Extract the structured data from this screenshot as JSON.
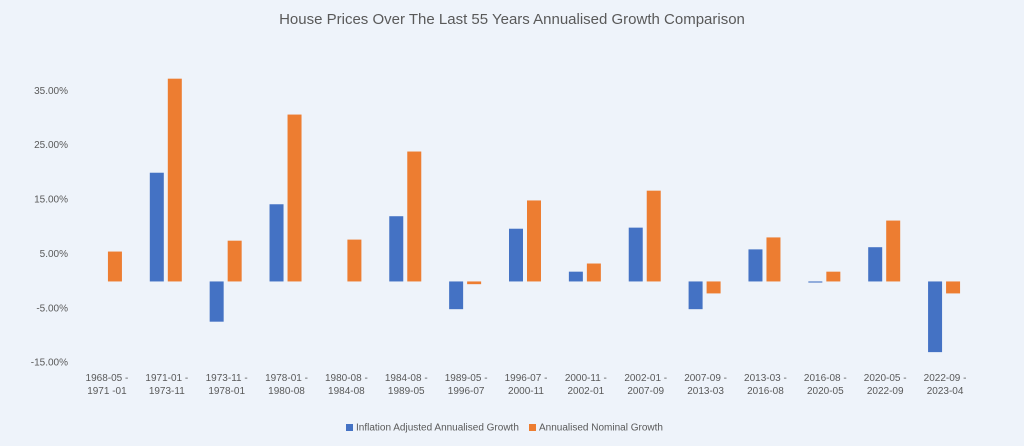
{
  "chart_data": {
    "type": "bar",
    "title": "House Prices Over The Last 55 Years Annualised Growth Comparison",
    "categories": [
      [
        "1968-05 -",
        "1971 -01"
      ],
      [
        "1971-01 -",
        "1973-11"
      ],
      [
        "1973-11 -",
        "1978-01"
      ],
      [
        "1978-01 -",
        "1980-08"
      ],
      [
        "1980-08 -",
        "1984-08"
      ],
      [
        "1984-08 -",
        "1989-05"
      ],
      [
        "1989-05 -",
        "1996-07"
      ],
      [
        "1996-07 -",
        "2000-11"
      ],
      [
        "2000-11 -",
        "2002-01"
      ],
      [
        "2002-01 -",
        "2007-09"
      ],
      [
        "2007-09 -",
        "2013-03"
      ],
      [
        "2013-03 -",
        "2016-08"
      ],
      [
        "2016-08 -",
        "2020-05"
      ],
      [
        "2020-05 -",
        "2022-09"
      ],
      [
        "2022-09 -",
        "2023-04"
      ]
    ],
    "series": [
      {
        "name": "Inflation Adjusted Annualised Growth",
        "color": "#4472c4",
        "values": [
          0,
          20.0,
          -7.4,
          14.2,
          0,
          12.0,
          -5.1,
          9.7,
          1.8,
          9.9,
          -5.1,
          5.9,
          -0.2,
          6.3,
          -13.0
        ]
      },
      {
        "name": "Annualised Nominal Growth",
        "color": "#ed7d31",
        "values": [
          5.5,
          37.3,
          7.5,
          30.7,
          7.7,
          23.9,
          -0.5,
          14.9,
          3.3,
          16.7,
          -2.2,
          8.1,
          1.8,
          11.2,
          -2.2
        ]
      }
    ],
    "ylim": [
      -15,
      40
    ],
    "yticks": [
      {
        "value": -15,
        "label": "-15.00%"
      },
      {
        "value": -5,
        "label": "-5.00%"
      },
      {
        "value": 5,
        "label": "5.00%"
      },
      {
        "value": 15,
        "label": "15.00%"
      },
      {
        "value": 25,
        "label": "25.00%"
      },
      {
        "value": 35,
        "label": "35.00%"
      }
    ],
    "legend": "bottom"
  }
}
